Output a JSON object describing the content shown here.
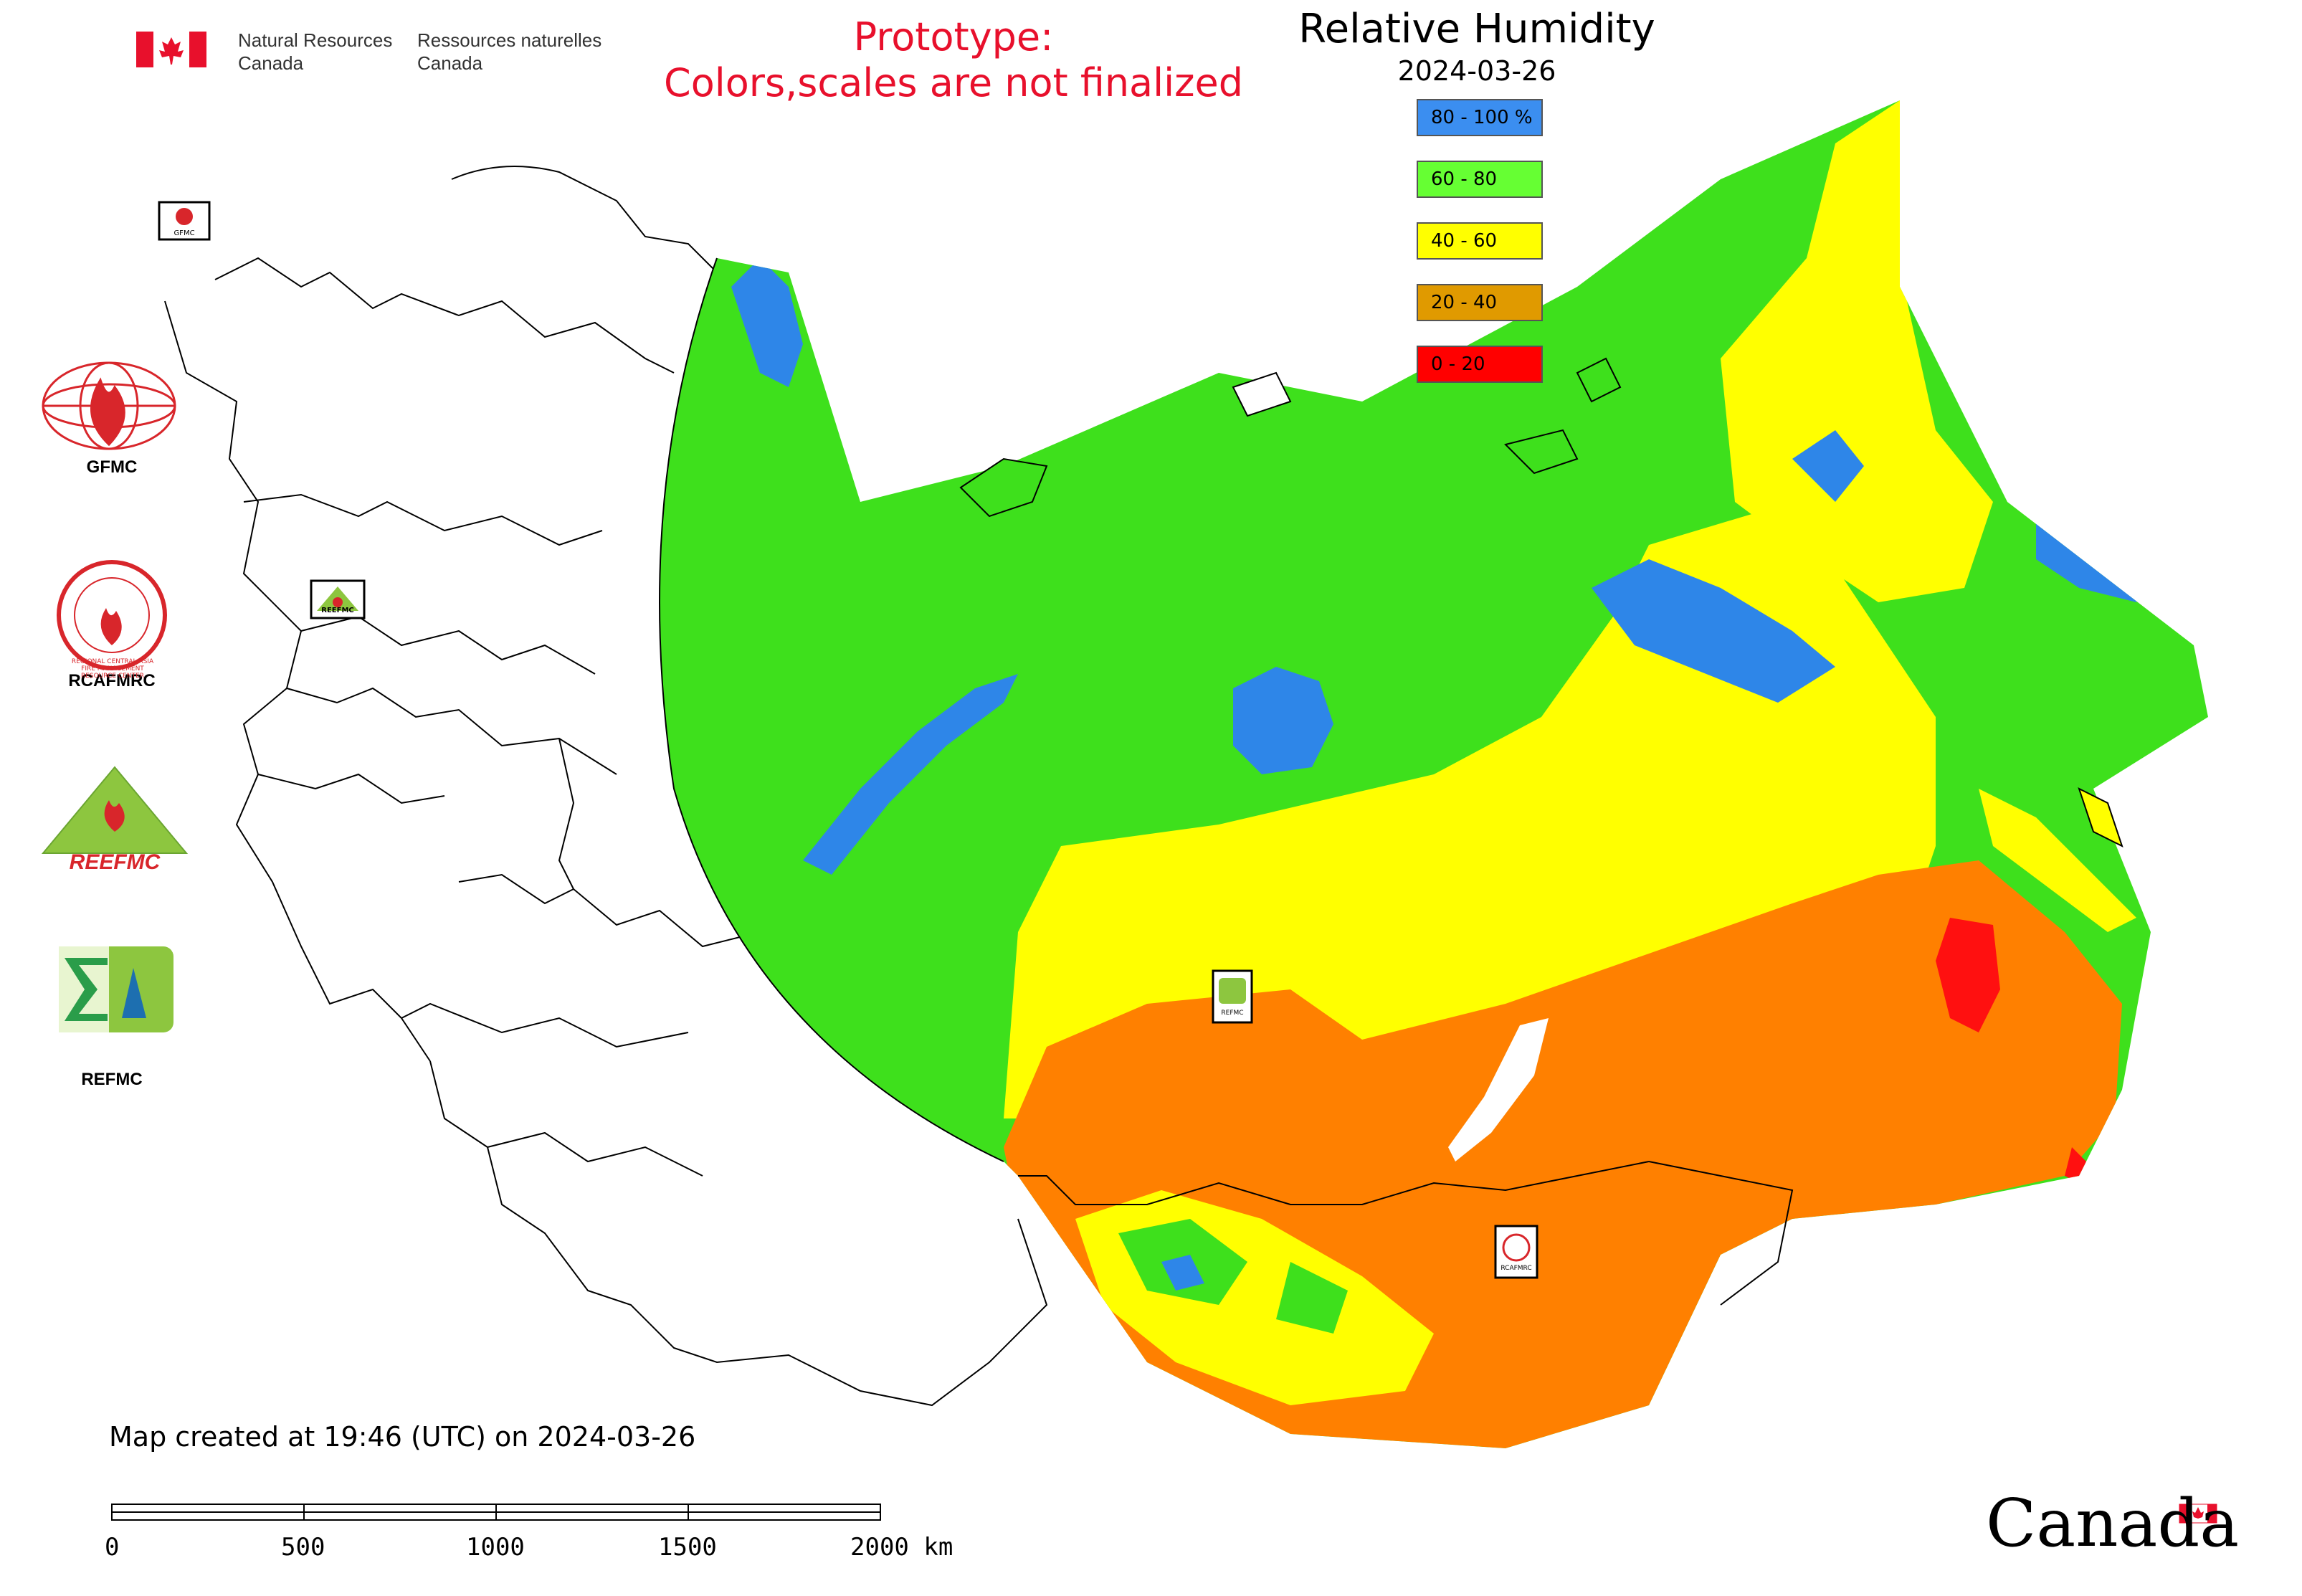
{
  "header": {
    "org_en_line1": "Natural Resources",
    "org_en_line2": "Canada",
    "org_fr_line1": "Ressources naturelles",
    "org_fr_line2": "Canada"
  },
  "notice": {
    "line1": "Prototype:",
    "line2": "Colors,scales are not finalized"
  },
  "map": {
    "title": "Relative Humidity",
    "date": "2024-03-26",
    "legend": [
      {
        "label": "80 - 100 %",
        "color": "#3b8ef0"
      },
      {
        "label": "60 - 80",
        "color": "#66ff33"
      },
      {
        "label": "40 - 60",
        "color": "#ffff00"
      },
      {
        "label": "20 - 40",
        "color": "#e09a00"
      },
      {
        "label": "0 - 20",
        "color": "#ff0000"
      }
    ],
    "field_colors": {
      "very_wet": "#2e86e8",
      "wet": "#3ee01c",
      "moderate": "#ffff00",
      "dry": "#ff8000",
      "very_dry": "#ff1010"
    }
  },
  "logos": {
    "gfmc": "GFMC",
    "rcafmrc": "RCAFMRC",
    "rcafmrc_ring_text": "REGIONAL CENTRAL ASIA FIRE MANAGEMENT RESOURCE CENTER",
    "reefmc": "REEFMC",
    "refmc": "REFMC",
    "marker_gfmc": "GFMC",
    "marker_reefmc": "REEFMC",
    "marker_refmc": "REFMC",
    "marker_rcafmrc": "RCAFMRC"
  },
  "footer": {
    "created": "Map created at 19:46 (UTC) on 2024-03-26",
    "scale_ticks": [
      "0",
      "500",
      "1000",
      "1500",
      "2000 km"
    ],
    "wordmark": "Canada"
  }
}
